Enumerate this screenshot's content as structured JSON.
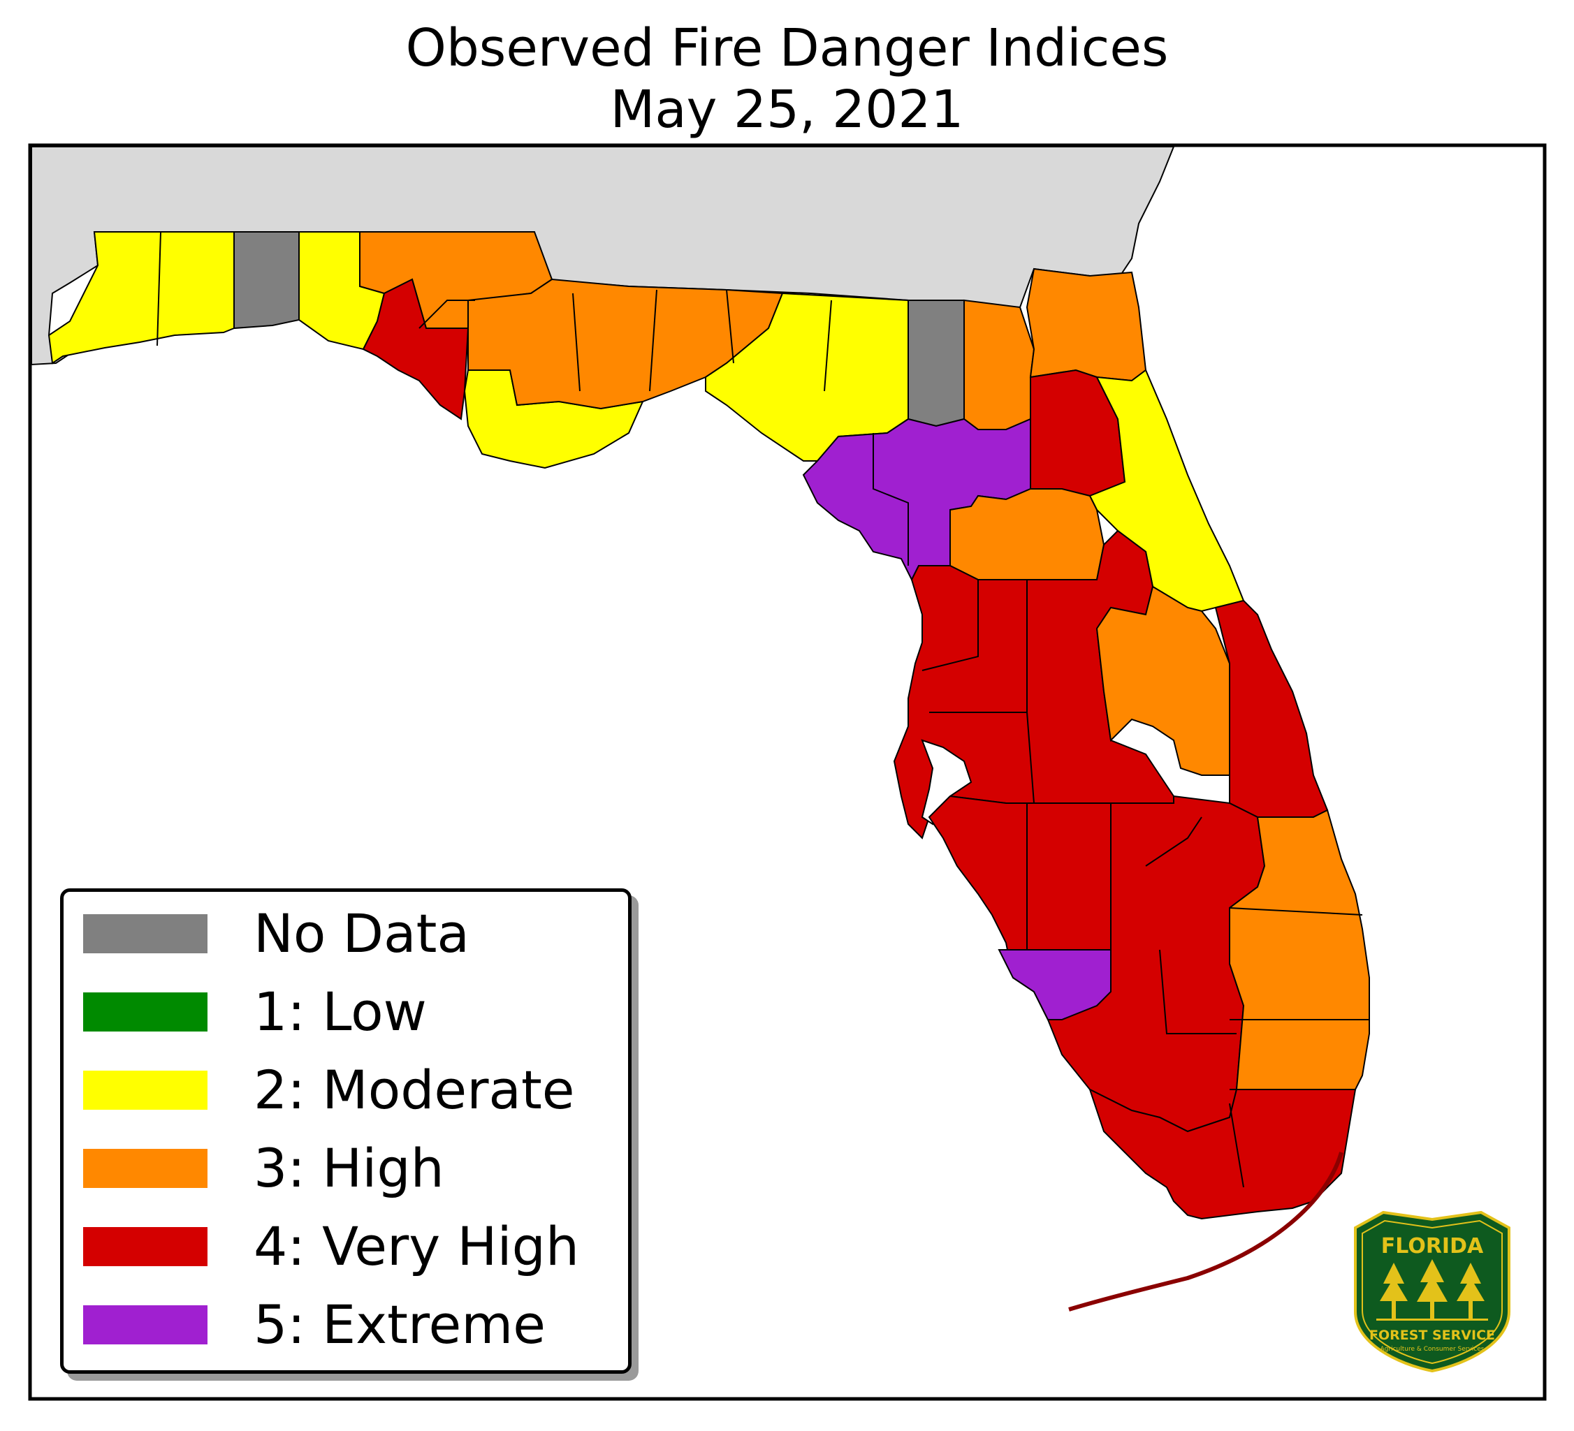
{
  "title": {
    "line1": "Observed Fire Danger Indices",
    "line2": "May 25, 2021"
  },
  "legend": [
    {
      "label": "No Data",
      "color": "#808080"
    },
    {
      "label": "1: Low",
      "color": "#008a00"
    },
    {
      "label": "2: Moderate",
      "color": "#ffff00"
    },
    {
      "label": "3: High",
      "color": "#ff8800"
    },
    {
      "label": "4: Very High",
      "color": "#d40000"
    },
    {
      "label": "5: Extreme",
      "color": "#a020d0"
    }
  ],
  "colors": {
    "neighbor_land": "#d9d9d9",
    "water": "#ffffff",
    "border": "#000000"
  },
  "logo": {
    "top_text": "FLORIDA",
    "main_text": "FOREST SERVICE",
    "sub_text": "Agriculture & Consumer Services",
    "color_green": "#0e5a1f",
    "color_gold": "#e3c21a"
  }
}
